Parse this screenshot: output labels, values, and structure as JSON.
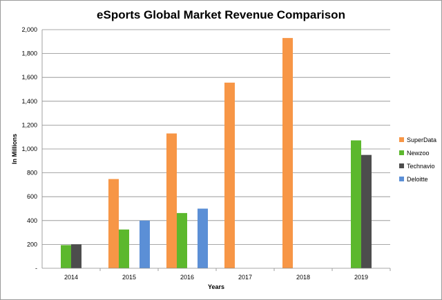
{
  "chart_data": {
    "type": "bar",
    "title": "eSports Global Market Revenue Comparison",
    "xlabel": "Years",
    "ylabel": "In Millions",
    "categories": [
      "2014",
      "2015",
      "2016",
      "2017",
      "2018",
      "2019"
    ],
    "ylim": [
      0,
      2000
    ],
    "yticks": [
      0,
      200,
      400,
      600,
      800,
      1000,
      1200,
      1400,
      1600,
      1800,
      2000
    ],
    "ytick_labels": [
      "-",
      "200",
      "400",
      "600",
      "800",
      "1,000",
      "1,200",
      "1,400",
      "1,600",
      "1,800",
      "2,000"
    ],
    "grid": true,
    "legend_position": "right",
    "series": [
      {
        "name": "SuperData",
        "color": "#F79646",
        "values": [
          null,
          748,
          1130,
          1556,
          1930,
          null
        ]
      },
      {
        "name": "Newzoo",
        "color": "#5CB82D",
        "values": [
          194,
          325,
          463,
          null,
          null,
          1072
        ]
      },
      {
        "name": "Technavio",
        "color": "#4D4D4D",
        "values": [
          200,
          null,
          null,
          null,
          null,
          950
        ]
      },
      {
        "name": "Deloitte",
        "color": "#5B8FD6",
        "values": [
          null,
          400,
          500,
          null,
          null,
          null
        ]
      }
    ]
  }
}
